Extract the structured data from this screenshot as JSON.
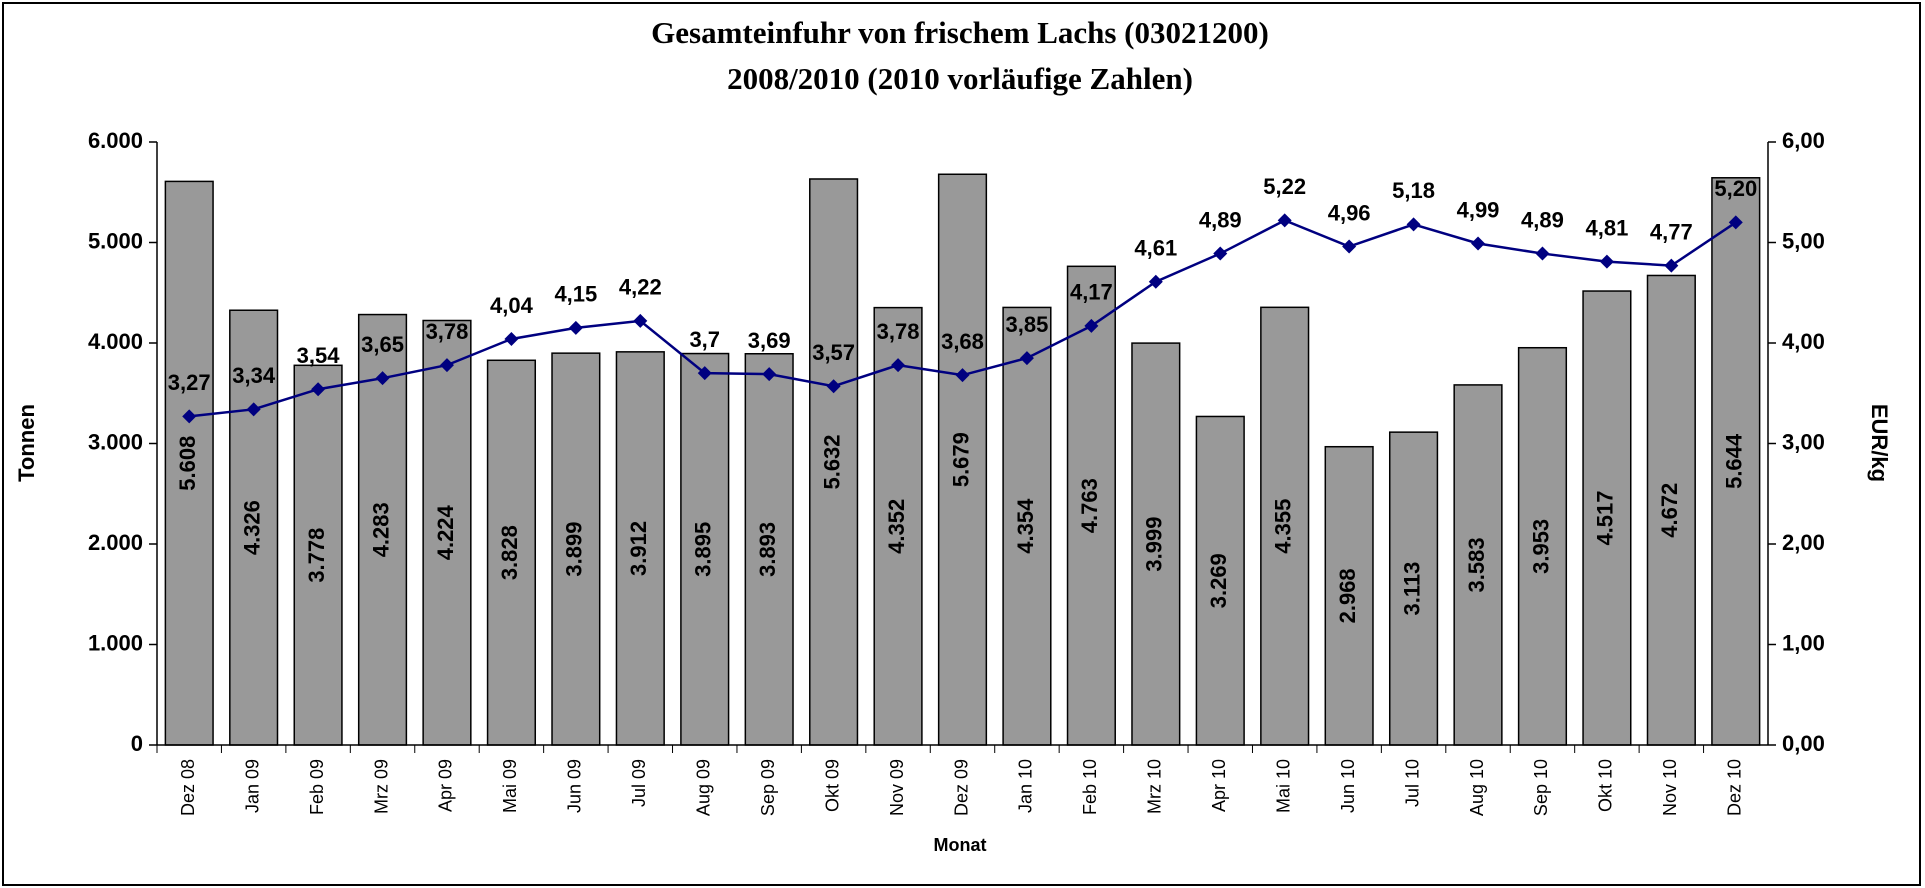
{
  "chart_data": {
    "type": "bar_line",
    "title": "Gesamteinfuhr von frischem Lachs (03021200)",
    "subtitle": "2008/2010 (2010 vorläufige Zahlen)",
    "x_label": "Monat",
    "y_label": "Tonnen",
    "y2_label": "EUR/kg",
    "categories": [
      "Dez 08",
      "Jan 09",
      "Feb 09",
      "Mrz 09",
      "Apr 09",
      "Mai 09",
      "Jun 09",
      "Jul 09",
      "Aug 09",
      "Sep 09",
      "Okt 09",
      "Nov 09",
      "Dez 09",
      "Jan 10",
      "Feb 10",
      "Mrz 10",
      "Apr 10",
      "Mai 10",
      "Jun 10",
      "Jul 10",
      "Aug 10",
      "Sep 10",
      "Okt 10",
      "Nov 10",
      "Dez 10"
    ],
    "series": [
      {
        "name": "Tonnen",
        "type": "bar",
        "color": "#999999",
        "values": [
          5608,
          4326,
          3778,
          4283,
          4224,
          3828,
          3899,
          3912,
          3895,
          3893,
          5632,
          4352,
          5679,
          4354,
          4763,
          3999,
          3269,
          4355,
          2968,
          3113,
          3583,
          3953,
          4517,
          4672,
          5644
        ],
        "value_labels": [
          "5.608",
          "4.326",
          "3.778",
          "4.283",
          "4.224",
          "3.828",
          "3.899",
          "3.912",
          "3.895",
          "3.893",
          "5.632",
          "4.352",
          "5.679",
          "4.354",
          "4.763",
          "3.999",
          "3.269",
          "4.355",
          "2.968",
          "3.113",
          "3.583",
          "3.953",
          "4.517",
          "4.672",
          "5.644"
        ]
      },
      {
        "name": "EUR/kg",
        "type": "line",
        "axis": "y2",
        "color": "#000080",
        "values": [
          3.27,
          3.34,
          3.54,
          3.65,
          3.78,
          4.04,
          4.15,
          4.22,
          3.7,
          3.69,
          3.57,
          3.78,
          3.68,
          3.85,
          4.17,
          4.61,
          4.89,
          5.22,
          4.96,
          5.18,
          4.99,
          4.89,
          4.81,
          4.77,
          5.2
        ],
        "value_labels": [
          "3,27",
          "3,34",
          "3,54",
          "3,65",
          "3,78",
          "4,04",
          "4,15",
          "4,22",
          "3,7",
          "3,69",
          "3,57",
          "3,78",
          "3,68",
          "3,85",
          "4,17",
          "4,61",
          "4,89",
          "5,22",
          "4,96",
          "5,18",
          "4,99",
          "4,89",
          "4,81",
          "4,77",
          "5,20"
        ]
      }
    ],
    "ylim": [
      0,
      6000
    ],
    "yticks": [
      0,
      {
        "value": 1000,
        "label": "1.000"
      },
      {
        "value": 2000,
        "label": "2.000"
      },
      {
        "value": 3000,
        "label": "3.000"
      },
      {
        "value": 4000,
        "label": "4.000"
      },
      {
        "value": 5000,
        "label": "5.000"
      },
      {
        "value": 6000,
        "label": "6.000"
      }
    ],
    "y2lim": [
      0,
      6
    ],
    "y2ticks": [
      {
        "value": 0,
        "label": "0,00"
      },
      {
        "value": 1,
        "label": "1,00"
      },
      {
        "value": 2,
        "label": "2,00"
      },
      {
        "value": 3,
        "label": "3,00"
      },
      {
        "value": 4,
        "label": "4,00"
      },
      {
        "value": 5,
        "label": "5,00"
      },
      {
        "value": 6,
        "label": "6,00"
      }
    ]
  }
}
